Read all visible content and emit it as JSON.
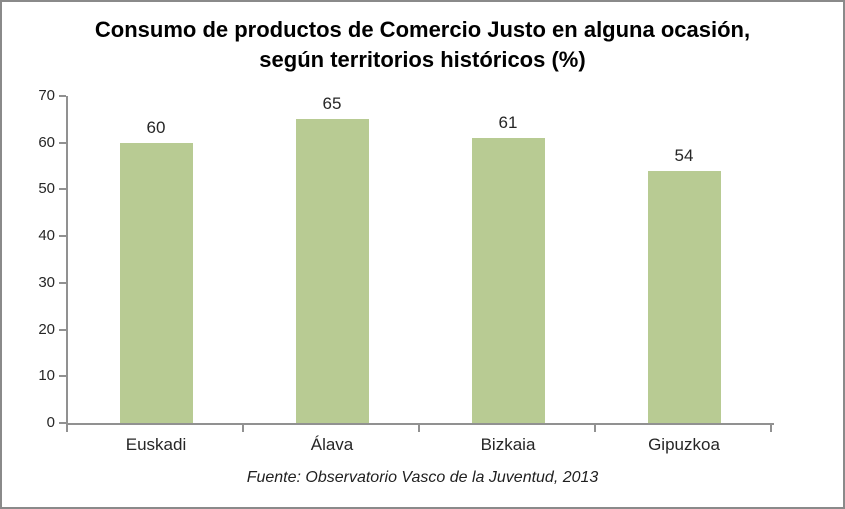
{
  "window": {
    "border_color": "#8a8a8a",
    "background": "#ffffff"
  },
  "chart_data": {
    "type": "bar",
    "title": "Consumo de productos de Comercio Justo en alguna ocasión,\nsegún territorios históricos (%)",
    "categories": [
      "Euskadi",
      "Álava",
      "Bizkaia",
      "Gipuzkoa"
    ],
    "values": [
      60,
      65,
      61,
      54
    ],
    "ylim": [
      0,
      70
    ],
    "yticks": [
      0,
      10,
      20,
      30,
      40,
      50,
      60,
      70
    ],
    "grid": false,
    "legend": false,
    "data_labels_shown": true,
    "bar_color": "#b8cb93",
    "axis_color": "#919191",
    "text_color": "#262626",
    "xlabel": "",
    "ylabel": ""
  },
  "footer": {
    "source": "Fuente: Observatorio Vasco de la Juventud, 2013"
  }
}
